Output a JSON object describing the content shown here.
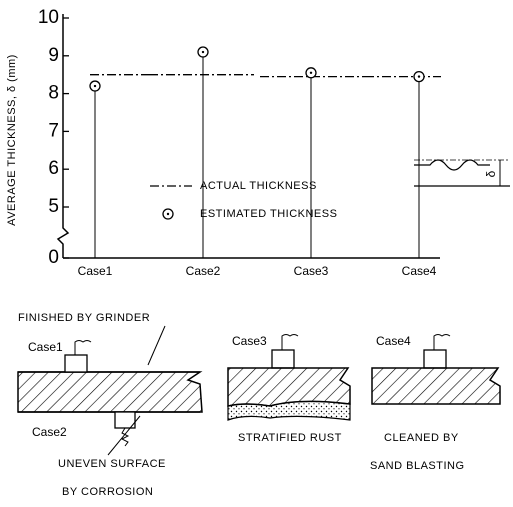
{
  "chart_data": {
    "type": "line",
    "y_label": "AVERAGE THICKNESS, δ (mm)",
    "categories": [
      "Case1",
      "Case2",
      "Case3",
      "Case4"
    ],
    "series": [
      {
        "name": "ACTUAL THICKNESS",
        "color": "#000000",
        "style": "dash-dot",
        "values": [
          8.5,
          8.5,
          8.45,
          8.45
        ]
      },
      {
        "name": "ESTIMATED THICKNESS",
        "color": "#000000",
        "style": "circle-dot",
        "values": [
          8.2,
          9.1,
          8.55,
          8.45
        ]
      }
    ],
    "ylim": [
      0,
      10
    ],
    "yticks": [
      0,
      5,
      6,
      7,
      8,
      9,
      10
    ],
    "broken_axis": true,
    "grid": false,
    "inset_label": "δ"
  },
  "diagram": {
    "panels": [
      {
        "labels": [
          "FINISHED BY GRINDER",
          "Case1",
          "Case2",
          "UNEVEN SURFACE",
          "BY CORROSION"
        ]
      },
      {
        "labels": [
          "Case3",
          "STRATIFIED RUST"
        ]
      },
      {
        "labels": [
          "Case4",
          "CLEANED BY",
          "SAND BLASTING"
        ]
      }
    ]
  }
}
